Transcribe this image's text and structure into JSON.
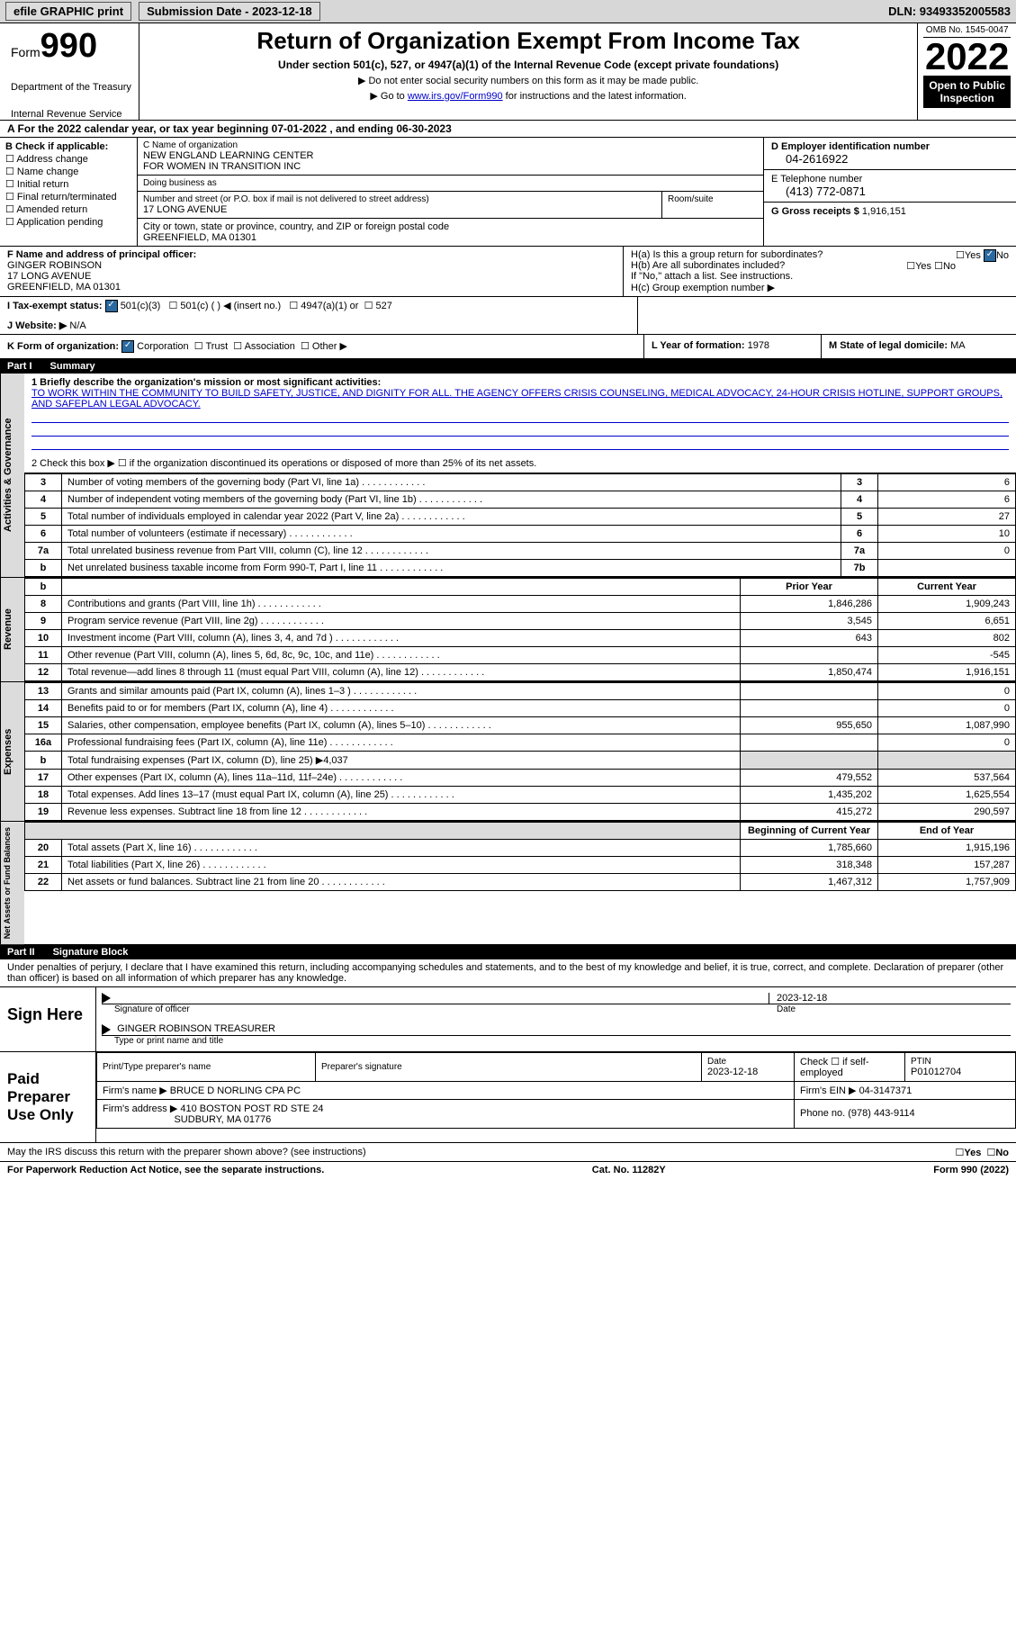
{
  "topbar": {
    "efile": "efile GRAPHIC print",
    "submission_label": "Submission Date - 2023-12-18",
    "dln_label": "DLN:",
    "dln": "93493352005583"
  },
  "header": {
    "form_word": "Form",
    "form_num": "990",
    "dept1": "Department of the Treasury",
    "dept2": "Internal Revenue Service",
    "title": "Return of Organization Exempt From Income Tax",
    "subtitle": "Under section 501(c), 527, or 4947(a)(1) of the Internal Revenue Code (except private foundations)",
    "note1": "▶ Do not enter social security numbers on this form as it may be made public.",
    "note2_pre": "▶ Go to ",
    "note2_link": "www.irs.gov/Form990",
    "note2_post": " for instructions and the latest information.",
    "omb": "OMB No. 1545-0047",
    "year": "2022",
    "open1": "Open to Public",
    "open2": "Inspection"
  },
  "line_a": "A For the 2022 calendar year, or tax year beginning 07-01-2022   , and ending 06-30-2023",
  "boxB": {
    "title": "B Check if applicable:",
    "o1": "Address change",
    "o2": "Name change",
    "o3": "Initial return",
    "o4": "Final return/terminated",
    "o5": "Amended return",
    "o6": "Application pending"
  },
  "boxC": {
    "name_lbl": "C Name of organization",
    "name1": "NEW ENGLAND LEARNING CENTER",
    "name2": "FOR WOMEN IN TRANSITION INC",
    "dba_lbl": "Doing business as",
    "addr_lbl": "Number and street (or P.O. box if mail is not delivered to street address)",
    "addr": "17 LONG AVENUE",
    "room_lbl": "Room/suite",
    "city_lbl": "City or town, state or province, country, and ZIP or foreign postal code",
    "city": "GREENFIELD, MA  01301"
  },
  "boxD": {
    "ein_lbl": "D Employer identification number",
    "ein": "04-2616922",
    "phone_lbl": "E Telephone number",
    "phone": "(413) 772-0871",
    "gross_lbl": "G Gross receipts $",
    "gross": "1,916,151"
  },
  "boxF": {
    "lbl": "F Name and address of principal officer:",
    "n": "GINGER ROBINSON",
    "a1": "17 LONG AVENUE",
    "a2": "GREENFIELD, MA  01301"
  },
  "boxH": {
    "ha": "H(a)  Is this a group return for subordinates?",
    "hb": "H(b)  Are all subordinates included?",
    "hb_note": "If \"No,\" attach a list. See instructions.",
    "hc": "H(c)  Group exemption number ▶",
    "yes": "Yes",
    "no": "No"
  },
  "taxexempt": {
    "lbl": "I   Tax-exempt status:",
    "o1": "501(c)(3)",
    "o2": "501(c) (   ) ◀ (insert no.)",
    "o3": "4947(a)(1) or",
    "o4": "527"
  },
  "website": {
    "lbl": "J   Website: ▶",
    "val": "N/A"
  },
  "lineK": {
    "lbl": "K Form of organization:",
    "o1": "Corporation",
    "o2": "Trust",
    "o3": "Association",
    "o4": "Other ▶"
  },
  "lineL": {
    "lbl": "L Year of formation:",
    "val": "1978"
  },
  "lineM": {
    "lbl": "M State of legal domicile:",
    "val": "MA"
  },
  "parts": {
    "p1": "Part I",
    "p1t": "Summary",
    "p2": "Part II",
    "p2t": "Signature Block"
  },
  "mission_lbl": "1  Briefly describe the organization's mission or most significant activities:",
  "mission": "TO WORK WITHIN THE COMMUNITY TO BUILD SAFETY, JUSTICE, AND DIGNITY FOR ALL. THE AGENCY OFFERS CRISIS COUNSELING, MEDICAL ADVOCACY, 24-HOUR CRISIS HOTLINE, SUPPORT GROUPS, AND SAFEPLAN LEGAL ADVOCACY.",
  "line2": "2   Check this box ▶ ☐ if the organization discontinued its operations or disposed of more than 25% of its net assets.",
  "vtabs": {
    "ag": "Activities & Governance",
    "rev": "Revenue",
    "exp": "Expenses",
    "net": "Net Assets or Fund Balances"
  },
  "cols": {
    "prior": "Prior Year",
    "current": "Current Year",
    "begin": "Beginning of Current Year",
    "end": "End of Year"
  },
  "lines_top": [
    {
      "n": "3",
      "t": "Number of voting members of the governing body (Part VI, line 1a)",
      "box": "3",
      "v": "6"
    },
    {
      "n": "4",
      "t": "Number of independent voting members of the governing body (Part VI, line 1b)",
      "box": "4",
      "v": "6"
    },
    {
      "n": "5",
      "t": "Total number of individuals employed in calendar year 2022 (Part V, line 2a)",
      "box": "5",
      "v": "27"
    },
    {
      "n": "6",
      "t": "Total number of volunteers (estimate if necessary)",
      "box": "6",
      "v": "10"
    },
    {
      "n": "7a",
      "t": "Total unrelated business revenue from Part VIII, column (C), line 12",
      "box": "7a",
      "v": "0"
    },
    {
      "n": "b",
      "t": "Net unrelated business taxable income from Form 990-T, Part I, line 11",
      "box": "7b",
      "v": ""
    }
  ],
  "revenue": [
    {
      "n": "8",
      "t": "Contributions and grants (Part VIII, line 1h)",
      "p": "1,846,286",
      "c": "1,909,243"
    },
    {
      "n": "9",
      "t": "Program service revenue (Part VIII, line 2g)",
      "p": "3,545",
      "c": "6,651"
    },
    {
      "n": "10",
      "t": "Investment income (Part VIII, column (A), lines 3, 4, and 7d )",
      "p": "643",
      "c": "802"
    },
    {
      "n": "11",
      "t": "Other revenue (Part VIII, column (A), lines 5, 6d, 8c, 9c, 10c, and 11e)",
      "p": "",
      "c": "-545"
    },
    {
      "n": "12",
      "t": "Total revenue—add lines 8 through 11 (must equal Part VIII, column (A), line 12)",
      "p": "1,850,474",
      "c": "1,916,151"
    }
  ],
  "expenses": [
    {
      "n": "13",
      "t": "Grants and similar amounts paid (Part IX, column (A), lines 1–3 )",
      "p": "",
      "c": "0"
    },
    {
      "n": "14",
      "t": "Benefits paid to or for members (Part IX, column (A), line 4)",
      "p": "",
      "c": "0"
    },
    {
      "n": "15",
      "t": "Salaries, other compensation, employee benefits (Part IX, column (A), lines 5–10)",
      "p": "955,650",
      "c": "1,087,990"
    },
    {
      "n": "16a",
      "t": "Professional fundraising fees (Part IX, column (A), line 11e)",
      "p": "",
      "c": "0"
    },
    {
      "n": "b",
      "t": "Total fundraising expenses (Part IX, column (D), line 25) ▶4,037",
      "gray": true
    },
    {
      "n": "17",
      "t": "Other expenses (Part IX, column (A), lines 11a–11d, 11f–24e)",
      "p": "479,552",
      "c": "537,564"
    },
    {
      "n": "18",
      "t": "Total expenses. Add lines 13–17 (must equal Part IX, column (A), line 25)",
      "p": "1,435,202",
      "c": "1,625,554"
    },
    {
      "n": "19",
      "t": "Revenue less expenses. Subtract line 18 from line 12",
      "p": "415,272",
      "c": "290,597"
    }
  ],
  "netassets": [
    {
      "n": "20",
      "t": "Total assets (Part X, line 16)",
      "p": "1,785,660",
      "c": "1,915,196"
    },
    {
      "n": "21",
      "t": "Total liabilities (Part X, line 26)",
      "p": "318,348",
      "c": "157,287"
    },
    {
      "n": "22",
      "t": "Net assets or fund balances. Subtract line 21 from line 20",
      "p": "1,467,312",
      "c": "1,757,909"
    }
  ],
  "sig_decl": "Under penalties of perjury, I declare that I have examined this return, including accompanying schedules and statements, and to the best of my knowledge and belief, it is true, correct, and complete. Declaration of preparer (other than officer) is based on all information of which preparer has any knowledge.",
  "sign": {
    "here": "Sign Here",
    "sig_lbl": "Signature of officer",
    "date": "2023-12-18",
    "name": "GINGER ROBINSON  TREASURER",
    "name_lbl": "Type or print name and title"
  },
  "preparer": {
    "title": "Paid Preparer Use Only",
    "h1": "Print/Type preparer's name",
    "h2": "Preparer's signature",
    "h3_lbl": "Date",
    "h3": "2023-12-18",
    "h4": "Check ☐ if self-employed",
    "h5_lbl": "PTIN",
    "h5": "P01012704",
    "firm_lbl": "Firm's name    ▶",
    "firm": "BRUCE D NORLING CPA PC",
    "ein_lbl": "Firm's EIN ▶",
    "ein": "04-3147371",
    "addr_lbl": "Firm's address ▶",
    "addr1": "410 BOSTON POST RD STE 24",
    "addr2": "SUDBURY, MA  01776",
    "phone_lbl": "Phone no.",
    "phone": "(978) 443-9114"
  },
  "discuss": "May the IRS discuss this return with the preparer shown above? (see instructions)",
  "footer": {
    "l": "For Paperwork Reduction Act Notice, see the separate instructions.",
    "m": "Cat. No. 11282Y",
    "r": "Form 990 (2022)"
  }
}
